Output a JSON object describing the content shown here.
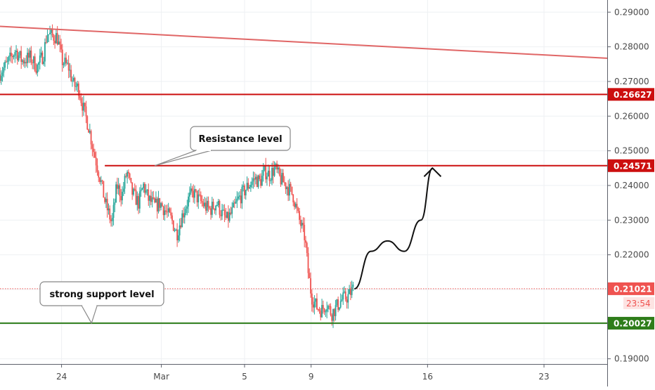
{
  "chart_data": {
    "type": "candlestick",
    "title": "",
    "xlabel": "",
    "ylabel": "",
    "ylim": [
      0.1885,
      0.2935
    ],
    "y_ticks": [
      "0.19000",
      "0.20000",
      "0.21000",
      "0.22000",
      "0.23000",
      "0.24000",
      "0.25000",
      "0.26000",
      "0.27000",
      "0.28000",
      "0.29000"
    ],
    "x_ticks": [
      {
        "label": "24",
        "t": 24
      },
      {
        "label": "Mar",
        "t": 30
      },
      {
        "label": "5",
        "t": 35
      },
      {
        "label": "9",
        "t": 39
      },
      {
        "label": "16",
        "t": 46
      },
      {
        "label": "23",
        "t": 53
      }
    ],
    "xlim": [
      20.3,
      56.8
    ],
    "price_path": [
      [
        20.3,
        0.272
      ],
      [
        20.8,
        0.275
      ],
      [
        21.3,
        0.279
      ],
      [
        21.7,
        0.276
      ],
      [
        22.2,
        0.277
      ],
      [
        22.6,
        0.274
      ],
      [
        23.0,
        0.278
      ],
      [
        23.2,
        0.284
      ],
      [
        23.5,
        0.283
      ],
      [
        23.8,
        0.283
      ],
      [
        24.1,
        0.276
      ],
      [
        24.5,
        0.274
      ],
      [
        24.8,
        0.269
      ],
      [
        25.1,
        0.268
      ],
      [
        25.4,
        0.262
      ],
      [
        25.7,
        0.257
      ],
      [
        26.0,
        0.25
      ],
      [
        26.4,
        0.242
      ],
      [
        26.7,
        0.235
      ],
      [
        27.1,
        0.229
      ],
      [
        27.4,
        0.24
      ],
      [
        27.7,
        0.237
      ],
      [
        28.0,
        0.244
      ],
      [
        28.3,
        0.238
      ],
      [
        28.7,
        0.235
      ],
      [
        29.0,
        0.24
      ],
      [
        29.3,
        0.236
      ],
      [
        29.7,
        0.234
      ],
      [
        30.0,
        0.235
      ],
      [
        30.4,
        0.232
      ],
      [
        30.7,
        0.23
      ],
      [
        31.0,
        0.226
      ],
      [
        31.3,
        0.231
      ],
      [
        31.7,
        0.236
      ],
      [
        32.0,
        0.238
      ],
      [
        32.3,
        0.236
      ],
      [
        32.7,
        0.234
      ],
      [
        33.0,
        0.233
      ],
      [
        33.4,
        0.235
      ],
      [
        33.7,
        0.232
      ],
      [
        34.0,
        0.23
      ],
      [
        34.3,
        0.232
      ],
      [
        34.7,
        0.236
      ],
      [
        35.0,
        0.238
      ],
      [
        35.3,
        0.24
      ],
      [
        35.7,
        0.242
      ],
      [
        36.0,
        0.241
      ],
      [
        36.3,
        0.244
      ],
      [
        36.6,
        0.243
      ],
      [
        36.9,
        0.245
      ],
      [
        37.2,
        0.242
      ],
      [
        37.6,
        0.24
      ],
      [
        38.0,
        0.237
      ],
      [
        38.3,
        0.231
      ],
      [
        38.7,
        0.225
      ],
      [
        38.9,
        0.215
      ],
      [
        39.1,
        0.208
      ],
      [
        39.4,
        0.205
      ],
      [
        39.7,
        0.204
      ],
      [
        40.0,
        0.206
      ],
      [
        40.3,
        0.203
      ],
      [
        40.6,
        0.205
      ],
      [
        40.9,
        0.207
      ],
      [
        41.3,
        0.208
      ],
      [
        41.6,
        0.2102
      ]
    ],
    "series": [
      {
        "name": "",
        "kind": "resistance_line",
        "value": 0.24571,
        "price_label": "0.24571",
        "color": "#cc0f0f"
      },
      {
        "name": "",
        "kind": "horizontal_line",
        "value": 0.26627,
        "price_label": "0.26627",
        "color": "#cc0f0f"
      },
      {
        "name": "",
        "kind": "support_line",
        "value": 0.20027,
        "price_label": "0.20027",
        "color": "#2e7d1a"
      },
      {
        "name": "",
        "kind": "trend_line",
        "from": [
          20.3,
          0.2859
        ],
        "to": [
          56.8,
          0.2767
        ],
        "color": "#e06666"
      },
      {
        "name": "",
        "kind": "current_price",
        "value": 0.21021,
        "price_label": "0.21021",
        "countdown": "23:54",
        "color": "#ef5350"
      }
    ],
    "projection_path": [
      [
        41.6,
        0.2102
      ],
      [
        42.6,
        0.221
      ],
      [
        43.6,
        0.224
      ],
      [
        44.6,
        0.221
      ],
      [
        45.6,
        0.23
      ],
      [
        46.3,
        0.245
      ]
    ],
    "annotations": [
      {
        "text": "Resistance level",
        "points_to": [
          29.6,
          0.24571
        ]
      },
      {
        "text": "strong support level",
        "points_to": [
          25.8,
          0.20027
        ]
      }
    ],
    "grid": true,
    "colors": {
      "up": "#26a69a",
      "down": "#ef5350"
    }
  }
}
